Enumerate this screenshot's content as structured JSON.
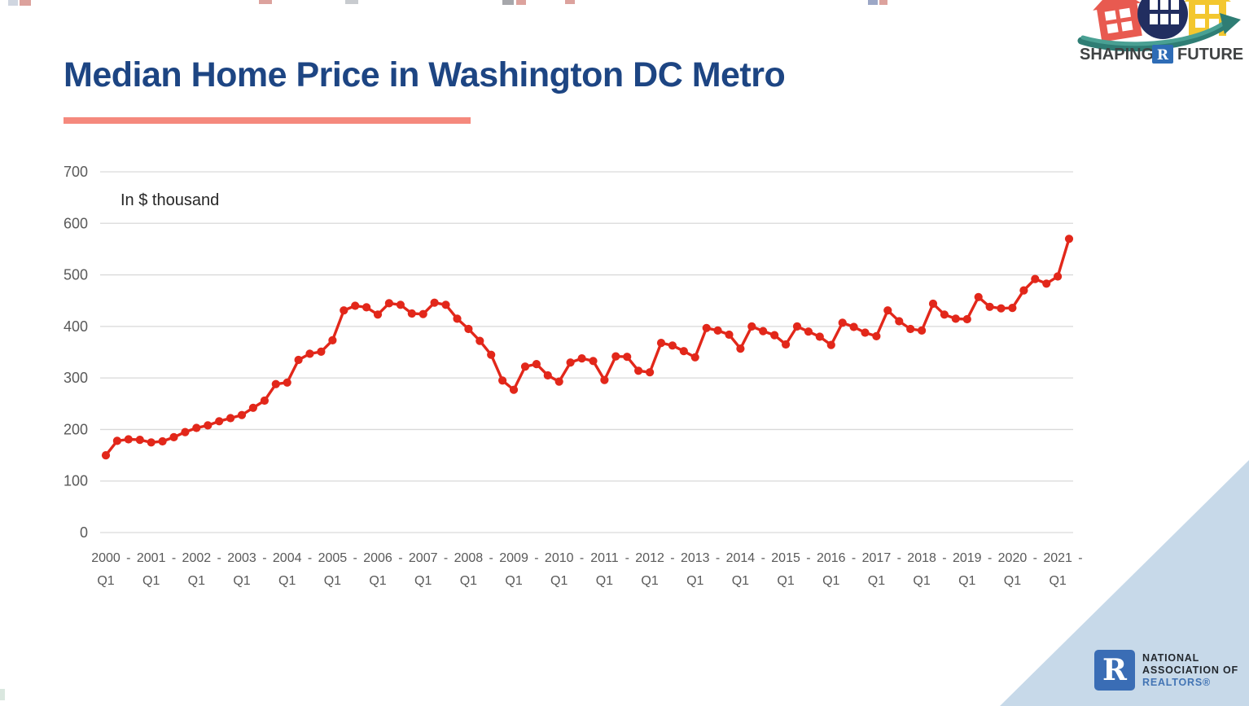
{
  "header": {
    "title": "Median Home Price in Washington DC Metro",
    "title_color": "#1d4583",
    "underline_color": "#f5897d"
  },
  "brand_top": {
    "shaping": "SHAPING",
    "realtor_r": "R",
    "future": "FUTURE"
  },
  "chart_data": {
    "type": "line",
    "title": "Median Home Price in Washington DC Metro",
    "annotation": "In $ thousand",
    "ylabel": "",
    "xlabel": "",
    "unit": "$ thousand",
    "ylim": [
      0,
      700
    ],
    "ytick_step": 100,
    "grid": true,
    "legend": "none",
    "series_color": "#e2271a",
    "gridline_color": "#d9d9d9",
    "axis_label_color": "#595959",
    "x_tick_years": [
      "2000",
      "2001",
      "2002",
      "2003",
      "2004",
      "2005",
      "2006",
      "2007",
      "2008",
      "2009",
      "2010",
      "2011",
      "2012",
      "2013",
      "2014",
      "2015",
      "2016",
      "2017",
      "2018",
      "2019",
      "2020",
      "2021"
    ],
    "x_tick_sub": "Q1",
    "x_tick_separator": "-",
    "x_start": {
      "year": 2000,
      "quarter": 1
    },
    "x_end": {
      "year": 2021,
      "quarter": 2
    },
    "frequency": "quarterly",
    "values": [
      150,
      178,
      181,
      180,
      175,
      177,
      185,
      195,
      203,
      208,
      216,
      222,
      228,
      242,
      256,
      288,
      291,
      335,
      347,
      351,
      373,
      431,
      440,
      437,
      423,
      445,
      442,
      425,
      424,
      446,
      442,
      415,
      395,
      372,
      345,
      295,
      277,
      322,
      327,
      305,
      293,
      330,
      338,
      333,
      296,
      342,
      341,
      314,
      311,
      368,
      363,
      352,
      340,
      397,
      392,
      384,
      357,
      400,
      391,
      383,
      365,
      400,
      390,
      380,
      364,
      407,
      399,
      388,
      381,
      431,
      410,
      395,
      392,
      444,
      423,
      415,
      414,
      457,
      438,
      435,
      436,
      470,
      492,
      483,
      497,
      570
    ]
  },
  "nar_logo": {
    "r_glyph": "R",
    "line1": "NATIONAL",
    "line2": "ASSOCIATION OF",
    "line3": "REALTORS®"
  }
}
